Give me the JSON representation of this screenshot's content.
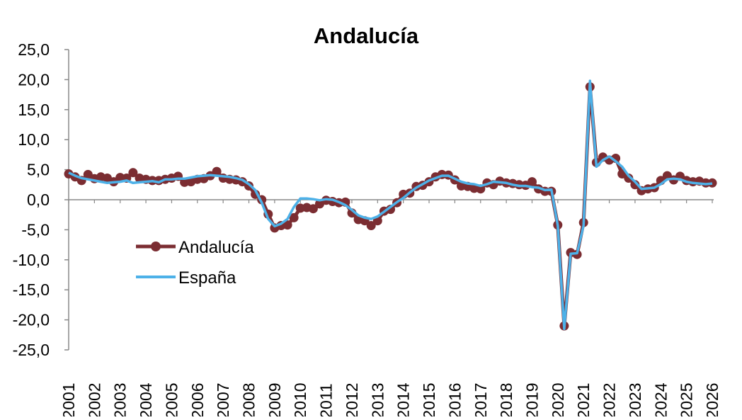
{
  "chart_data": {
    "type": "line",
    "title": "Andalucía",
    "xlabel": "",
    "ylabel": "",
    "ylim": [
      -25,
      25
    ],
    "y_ticks": [
      "25,0",
      "20,0",
      "15,0",
      "10,0",
      "5,0",
      "0,0",
      "-5,0",
      "-10,0",
      "-15,0",
      "-20,0",
      "-25,0"
    ],
    "x_range": [
      2001,
      2026
    ],
    "x_ticks": [
      "2001",
      "2002",
      "2003",
      "2004",
      "2005",
      "2006",
      "2007",
      "2008",
      "2009",
      "2010",
      "2011",
      "2012",
      "2013",
      "2014",
      "2015",
      "2016",
      "2017",
      "2018",
      "2019",
      "2020",
      "2021",
      "2022",
      "2023",
      "2024",
      "2025",
      "2026"
    ],
    "grid": false,
    "legend_position": "left-middle",
    "series": [
      {
        "name": "Andalucía",
        "color": "#7B2D32",
        "marker": "circle",
        "x": [
          2001.0,
          2001.25,
          2001.5,
          2001.75,
          2002.0,
          2002.25,
          2002.5,
          2002.75,
          2003.0,
          2003.25,
          2003.5,
          2003.75,
          2004.0,
          2004.25,
          2004.5,
          2004.75,
          2005.0,
          2005.25,
          2005.5,
          2005.75,
          2006.0,
          2006.25,
          2006.5,
          2006.75,
          2007.0,
          2007.25,
          2007.5,
          2007.75,
          2008.0,
          2008.25,
          2008.5,
          2008.75,
          2009.0,
          2009.25,
          2009.5,
          2009.75,
          2010.0,
          2010.25,
          2010.5,
          2010.75,
          2011.0,
          2011.25,
          2011.5,
          2011.75,
          2012.0,
          2012.25,
          2012.5,
          2012.75,
          2013.0,
          2013.25,
          2013.5,
          2013.75,
          2014.0,
          2014.25,
          2014.5,
          2014.75,
          2015.0,
          2015.25,
          2015.5,
          2015.75,
          2016.0,
          2016.25,
          2016.5,
          2016.75,
          2017.0,
          2017.25,
          2017.5,
          2017.75,
          2018.0,
          2018.25,
          2018.5,
          2018.75,
          2019.0,
          2019.25,
          2019.5,
          2019.75,
          2020.0,
          2020.25,
          2020.5,
          2020.75,
          2021.0,
          2021.25,
          2021.5,
          2021.75,
          2022.0,
          2022.25,
          2022.5,
          2022.75,
          2023.0,
          2023.25,
          2023.5,
          2023.75,
          2024.0,
          2024.25,
          2024.5,
          2024.75,
          2025.0,
          2025.25,
          2025.5,
          2025.75,
          2026.0
        ],
        "values": [
          4.3,
          3.8,
          3.2,
          4.2,
          3.5,
          3.8,
          3.6,
          3.0,
          3.7,
          3.6,
          4.5,
          3.6,
          3.4,
          3.2,
          3.2,
          3.4,
          3.6,
          3.9,
          2.9,
          3.0,
          3.4,
          3.5,
          4.0,
          4.7,
          3.6,
          3.4,
          3.3,
          3.0,
          2.3,
          0.9,
          0.0,
          -2.4,
          -4.7,
          -4.3,
          -4.2,
          -3.0,
          -1.4,
          -1.3,
          -1.5,
          -0.7,
          -0.1,
          -0.3,
          -0.5,
          -0.4,
          -2.2,
          -3.3,
          -3.5,
          -4.3,
          -3.5,
          -1.9,
          -1.6,
          -0.5,
          0.9,
          1.1,
          2.2,
          2.4,
          3.0,
          3.8,
          4.2,
          4.1,
          3.3,
          2.3,
          2.2,
          1.9,
          1.8,
          2.8,
          2.5,
          3.1,
          2.8,
          2.7,
          2.5,
          2.4,
          3.0,
          1.8,
          1.4,
          1.4,
          -4.2,
          -21.0,
          -8.8,
          -9.1,
          -3.8,
          18.8,
          6.2,
          7.1,
          6.6,
          6.9,
          4.3,
          3.6,
          2.5,
          1.5,
          1.8,
          2.0,
          3.2,
          4.0,
          3.3,
          3.9,
          3.2,
          3.0,
          3.1,
          2.8,
          2.8
        ]
      },
      {
        "name": "España",
        "color": "#4DB1E8",
        "marker": "none",
        "x": [
          2001.0,
          2001.25,
          2001.5,
          2001.75,
          2002.0,
          2002.25,
          2002.5,
          2002.75,
          2003.0,
          2003.25,
          2003.5,
          2003.75,
          2004.0,
          2004.25,
          2004.5,
          2004.75,
          2005.0,
          2005.25,
          2005.5,
          2005.75,
          2006.0,
          2006.25,
          2006.5,
          2006.75,
          2007.0,
          2007.25,
          2007.5,
          2007.75,
          2008.0,
          2008.25,
          2008.5,
          2008.75,
          2009.0,
          2009.25,
          2009.5,
          2009.75,
          2010.0,
          2010.25,
          2010.5,
          2010.75,
          2011.0,
          2011.25,
          2011.5,
          2011.75,
          2012.0,
          2012.25,
          2012.5,
          2012.75,
          2013.0,
          2013.25,
          2013.5,
          2013.75,
          2014.0,
          2014.25,
          2014.5,
          2014.75,
          2015.0,
          2015.25,
          2015.5,
          2015.75,
          2016.0,
          2016.25,
          2016.5,
          2016.75,
          2017.0,
          2017.25,
          2017.5,
          2017.75,
          2018.0,
          2018.25,
          2018.5,
          2018.75,
          2019.0,
          2019.25,
          2019.5,
          2019.75,
          2020.0,
          2020.25,
          2020.5,
          2020.75,
          2021.0,
          2021.25,
          2021.5,
          2021.75,
          2022.0,
          2022.25,
          2022.5,
          2022.75,
          2023.0,
          2023.25,
          2023.5,
          2023.75,
          2024.0,
          2024.25,
          2024.5,
          2024.75,
          2025.0,
          2025.25,
          2025.5,
          2025.75,
          2026.0
        ],
        "values": [
          4.5,
          4.0,
          3.6,
          3.4,
          3.2,
          3.0,
          2.8,
          2.9,
          3.0,
          3.2,
          2.8,
          2.9,
          3.0,
          3.1,
          2.9,
          3.4,
          3.4,
          3.5,
          3.5,
          3.7,
          3.9,
          4.0,
          4.1,
          4.0,
          3.9,
          3.8,
          3.6,
          3.3,
          2.6,
          1.6,
          -0.5,
          -3.2,
          -4.4,
          -4.0,
          -3.2,
          -1.2,
          0.2,
          0.2,
          0.1,
          -0.1,
          0.1,
          0.0,
          -0.4,
          -0.9,
          -1.7,
          -2.6,
          -3.0,
          -3.2,
          -2.8,
          -2.0,
          -1.2,
          -0.4,
          0.3,
          1.2,
          2.0,
          2.6,
          3.2,
          3.6,
          4.0,
          4.0,
          3.5,
          3.0,
          2.7,
          2.6,
          2.3,
          2.6,
          3.0,
          2.9,
          2.8,
          2.5,
          2.3,
          2.3,
          2.1,
          2.0,
          1.6,
          1.7,
          -4.3,
          -21.5,
          -9.0,
          -8.9,
          -4.3,
          19.8,
          5.5,
          6.6,
          7.2,
          6.4,
          5.5,
          4.0,
          3.0,
          1.8,
          1.9,
          2.0,
          2.6,
          3.4,
          3.5,
          3.4,
          3.0,
          2.8,
          2.7,
          2.6,
          2.7
        ]
      }
    ]
  }
}
